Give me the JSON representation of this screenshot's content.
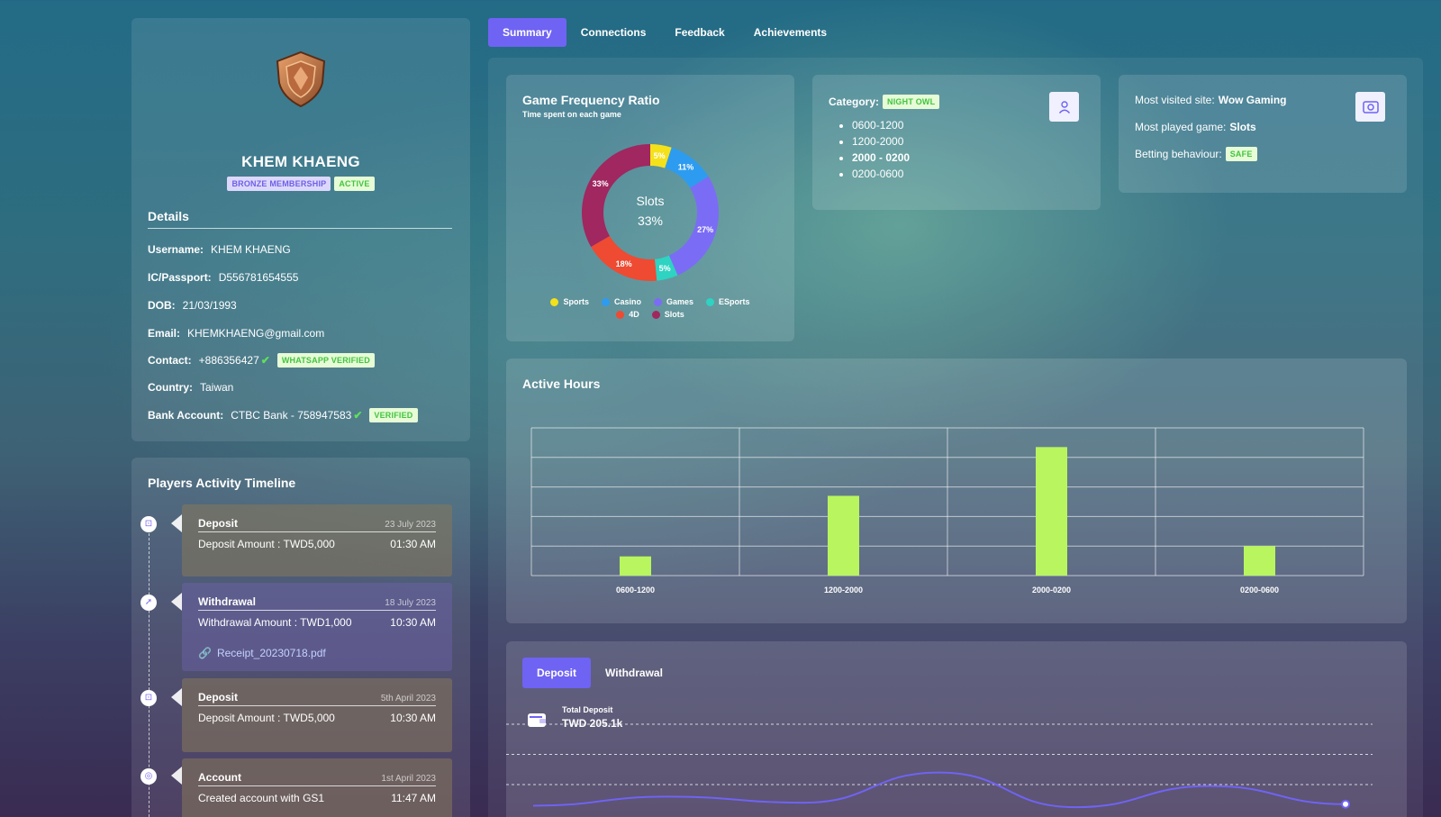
{
  "tabs": [
    "Summary",
    "Connections",
    "Feedback",
    "Achievements"
  ],
  "profile": {
    "name": "KHEM KHAENG",
    "membership": "BRONZE MEMBERSHIP",
    "status": "ACTIVE",
    "details_title": "Details",
    "username_label": "Username:",
    "username": "KHEM KHAENG",
    "ic_label": "IC/Passport:",
    "ic": "D556781654555",
    "dob_label": "DOB:",
    "dob": "21/03/1993",
    "email_label": "Email:",
    "email": "KHEMKHAENG@gmail.com",
    "contact_label": "Contact:",
    "contact": "+886356427",
    "contact_badge": "WHATSAPP VERIFIED",
    "country_label": "Country:",
    "country": "Taiwan",
    "bank_label": "Bank Account:",
    "bank": "CTBC Bank - 758947583",
    "bank_badge": "VERIFIED"
  },
  "timeline": {
    "title": "Players Activity Timeline",
    "items": [
      {
        "type": "Deposit",
        "date": "23 July 2023",
        "desc": "Deposit Amount : TWD5,000",
        "time": "01:30 AM"
      },
      {
        "type": "Withdrawal",
        "date": "18 July 2023",
        "desc": "Withdrawal Amount : TWD1,000",
        "time": "10:30 AM",
        "link": "Receipt_20230718.pdf"
      },
      {
        "type": "Deposit",
        "date": "5th April 2023",
        "desc": "Deposit Amount : TWD5,000",
        "time": "10:30 AM"
      },
      {
        "type": "Account",
        "date": "1st April 2023",
        "desc": "Created account with GS1",
        "time": "11:47 AM"
      }
    ]
  },
  "frequency": {
    "title": "Game Frequency Ratio",
    "subtitle": "Time spent on each game",
    "center_label": "Slots",
    "center_value": "33%"
  },
  "category": {
    "label": "Category:",
    "badge": "NIGHT OWL",
    "slots": [
      "0600-1200",
      "1200-2000",
      "2000 - 0200",
      "0200-0600"
    ]
  },
  "site": {
    "visited_label": "Most visited site:",
    "visited": "Wow Gaming",
    "played_label": "Most played game:",
    "played": "Slots",
    "betting_label": "Betting behaviour:",
    "betting_badge": "SAFE"
  },
  "active_hours": {
    "title": "Active Hours"
  },
  "deposit": {
    "tabs": [
      "Deposit",
      "Withdrawal"
    ],
    "total_label": "Total Deposit",
    "total_value": "TWD 205.1k"
  },
  "colors": {
    "accent": "#6f63f3",
    "bar": "#b8f55e",
    "line": "#6f63f3"
  },
  "chart_data": [
    {
      "type": "pie",
      "categories": [
        "Sports",
        "Casino",
        "Games",
        "ESports",
        "4D",
        "Slots"
      ],
      "values": [
        5,
        11,
        27,
        5,
        18,
        33
      ],
      "labels": [
        "5%",
        "11%",
        "27%",
        "5%",
        "18%",
        "33%"
      ],
      "colors": [
        "#f5e11a",
        "#2d9cf0",
        "#7b6cf6",
        "#2ed3c2",
        "#ef4a32",
        "#a0275f"
      ],
      "legend": "bottom"
    },
    {
      "type": "bar",
      "categories": [
        "0600-1200",
        "1200-2000",
        "2000-0200",
        "0200-0600"
      ],
      "values": [
        0.65,
        2.7,
        4.35,
        1.0
      ],
      "ylim": [
        0,
        5
      ],
      "grid": true
    },
    {
      "type": "line",
      "values": [
        0.3,
        0.6,
        0.4,
        1.4,
        0.25,
        0.95,
        0.35
      ],
      "ylim": [
        0,
        3
      ],
      "grid": true
    }
  ]
}
